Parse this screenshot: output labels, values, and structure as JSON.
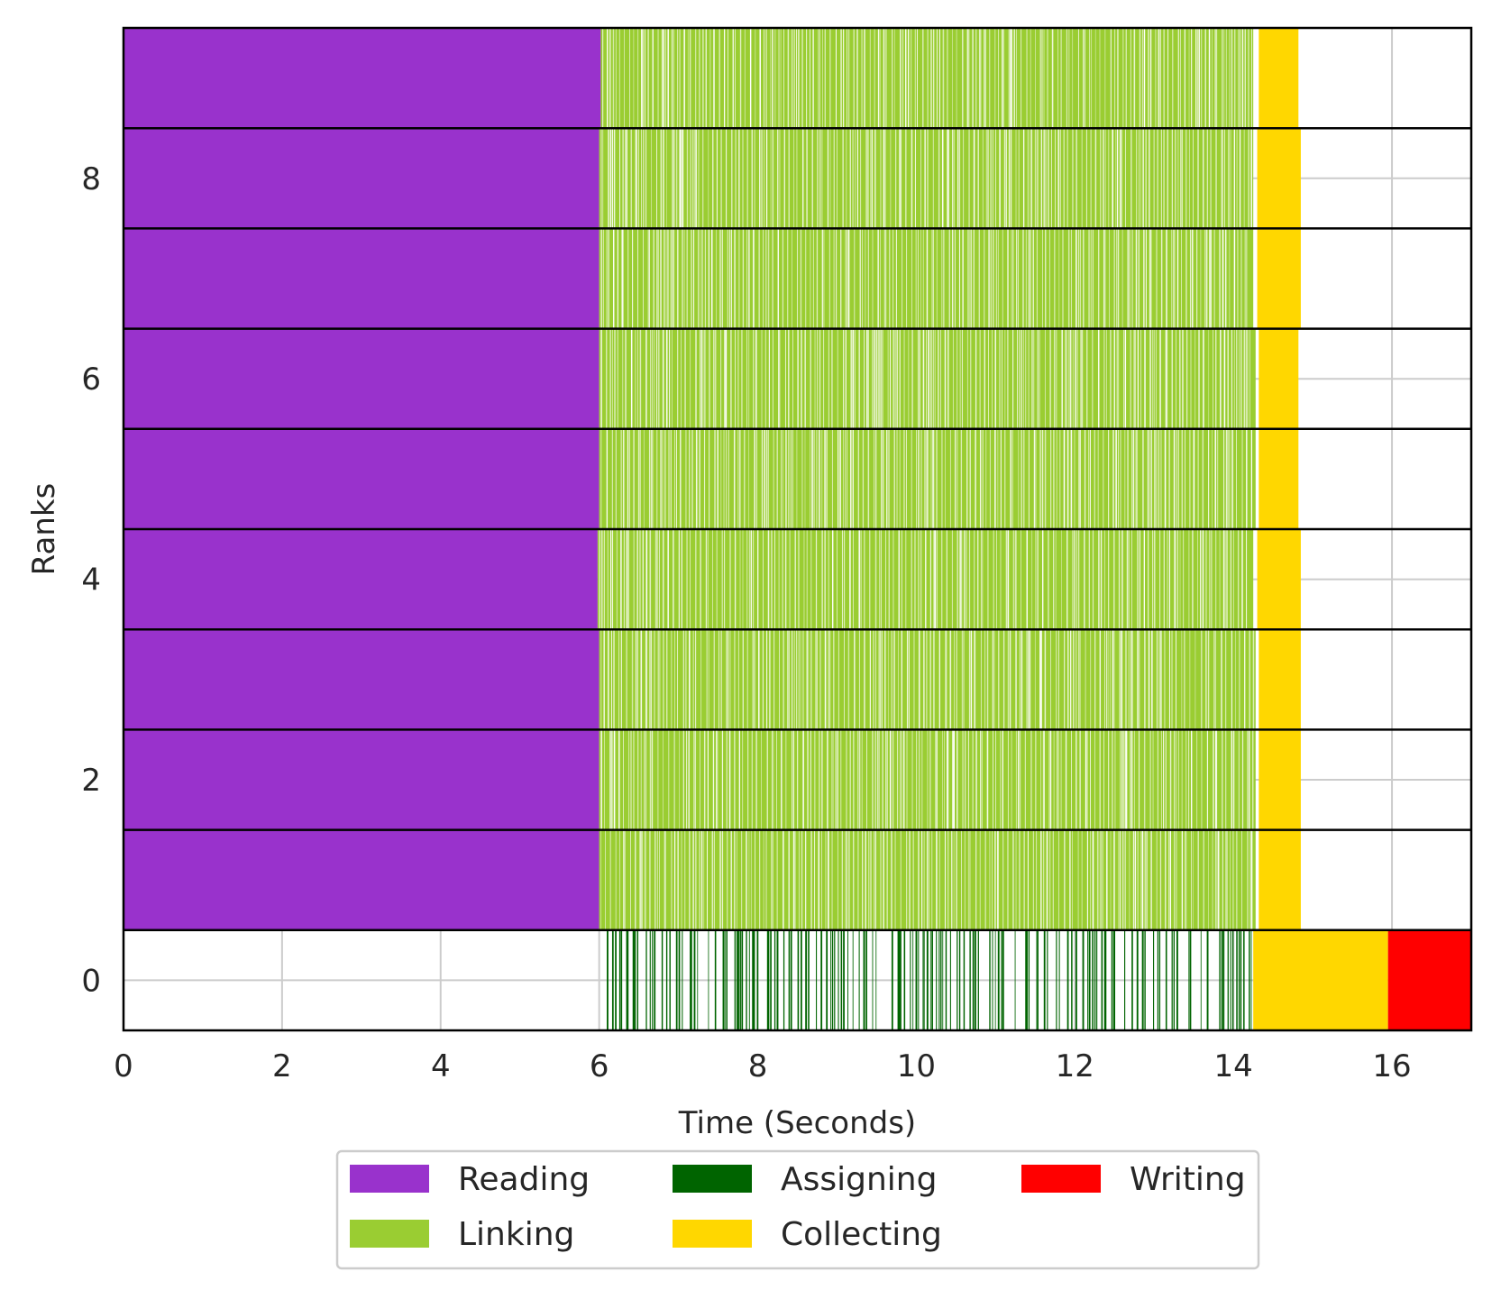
{
  "chart_data": {
    "type": "broken_barh",
    "xlabel": "Time (Seconds)",
    "ylabel": "Ranks",
    "xlim": [
      0,
      17
    ],
    "ylim": [
      -0.5,
      9.5
    ],
    "xticks": [
      0,
      2,
      4,
      6,
      8,
      10,
      12,
      14,
      16
    ],
    "xtick_labels": [
      "0",
      "2",
      "4",
      "6",
      "8",
      "10",
      "12",
      "14",
      "16"
    ],
    "yticks": [
      0,
      2,
      4,
      6,
      8
    ],
    "ytick_labels": [
      "0",
      "2",
      "4",
      "6",
      "8"
    ],
    "grid": true,
    "legend": {
      "placement": "below",
      "columns": 3,
      "entries": [
        {
          "name": "Reading",
          "color": "#9932CC"
        },
        {
          "name": "Linking",
          "color": "#9ACD32"
        },
        {
          "name": "Assigning",
          "color": "#006400"
        },
        {
          "name": "Collecting",
          "color": "#FFD700"
        },
        {
          "name": "Writing",
          "color": "#FF0000"
        }
      ]
    },
    "phases": [
      {
        "rank": 0,
        "task": "Assigning",
        "color": "#006400",
        "start": 6.0,
        "end": 14.25,
        "pattern": "intermittent"
      },
      {
        "rank": 0,
        "task": "Collecting",
        "color": "#FFD700",
        "start": 14.25,
        "end": 15.95
      },
      {
        "rank": 0,
        "task": "Writing",
        "color": "#FF0000",
        "start": 15.95,
        "end": 17.0
      },
      {
        "rank": 1,
        "task": "Reading",
        "color": "#9932CC",
        "start": 0,
        "end": 6.0
      },
      {
        "rank": 1,
        "task": "Linking",
        "color": "#9ACD32",
        "start": 6.0,
        "end": 14.28
      },
      {
        "rank": 1,
        "task": "Collecting",
        "color": "#FFD700",
        "start": 14.32,
        "end": 14.85
      },
      {
        "rank": 2,
        "task": "Reading",
        "color": "#9932CC",
        "start": 0,
        "end": 6.0
      },
      {
        "rank": 2,
        "task": "Linking",
        "color": "#9ACD32",
        "start": 6.0,
        "end": 14.28
      },
      {
        "rank": 2,
        "task": "Collecting",
        "color": "#FFD700",
        "start": 14.32,
        "end": 14.85
      },
      {
        "rank": 3,
        "task": "Reading",
        "color": "#9932CC",
        "start": 0,
        "end": 6.0
      },
      {
        "rank": 3,
        "task": "Linking",
        "color": "#9ACD32",
        "start": 6.0,
        "end": 14.28
      },
      {
        "rank": 3,
        "task": "Collecting",
        "color": "#FFD700",
        "start": 14.32,
        "end": 14.85
      },
      {
        "rank": 4,
        "task": "Reading",
        "color": "#9932CC",
        "start": 0,
        "end": 5.98
      },
      {
        "rank": 4,
        "task": "Linking",
        "color": "#9ACD32",
        "start": 5.98,
        "end": 14.25
      },
      {
        "rank": 4,
        "task": "Collecting",
        "color": "#FFD700",
        "start": 14.3,
        "end": 14.85
      },
      {
        "rank": 5,
        "task": "Reading",
        "color": "#9932CC",
        "start": 0,
        "end": 6.0
      },
      {
        "rank": 5,
        "task": "Linking",
        "color": "#9ACD32",
        "start": 6.0,
        "end": 14.28
      },
      {
        "rank": 5,
        "task": "Collecting",
        "color": "#FFD700",
        "start": 14.32,
        "end": 14.82
      },
      {
        "rank": 6,
        "task": "Reading",
        "color": "#9932CC",
        "start": 0,
        "end": 6.0
      },
      {
        "rank": 6,
        "task": "Linking",
        "color": "#9ACD32",
        "start": 6.0,
        "end": 14.28
      },
      {
        "rank": 6,
        "task": "Collecting",
        "color": "#FFD700",
        "start": 14.32,
        "end": 14.82
      },
      {
        "rank": 7,
        "task": "Reading",
        "color": "#9932CC",
        "start": 0,
        "end": 6.0
      },
      {
        "rank": 7,
        "task": "Linking",
        "color": "#9ACD32",
        "start": 6.0,
        "end": 14.25
      },
      {
        "rank": 7,
        "task": "Collecting",
        "color": "#FFD700",
        "start": 14.3,
        "end": 14.85
      },
      {
        "rank": 8,
        "task": "Reading",
        "color": "#9932CC",
        "start": 0,
        "end": 6.0
      },
      {
        "rank": 8,
        "task": "Linking",
        "color": "#9ACD32",
        "start": 6.0,
        "end": 14.25
      },
      {
        "rank": 8,
        "task": "Collecting",
        "color": "#FFD700",
        "start": 14.3,
        "end": 14.85
      },
      {
        "rank": 9,
        "task": "Reading",
        "color": "#9932CC",
        "start": 0,
        "end": 6.02
      },
      {
        "rank": 9,
        "task": "Linking",
        "color": "#9ACD32",
        "start": 6.02,
        "end": 14.25
      },
      {
        "rank": 9,
        "task": "Collecting",
        "color": "#FFD700",
        "start": 14.32,
        "end": 14.82
      }
    ]
  }
}
